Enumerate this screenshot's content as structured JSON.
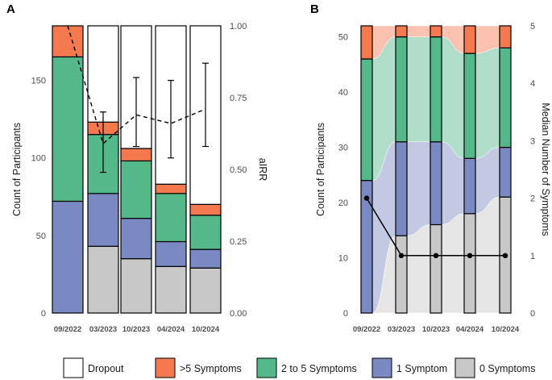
{
  "colors": {
    "Dropout": "#ffffff",
    ">5 Symptoms": "#f4794f",
    "2 to 5 Symptoms": "#55b88b",
    "1 Symptom": "#7b89c2",
    "0 Symptoms": "#c8c8c8"
  },
  "legend": [
    "Dropout",
    ">5 Symptoms",
    "2 to 5 Symptoms",
    "1 Symptom",
    "0 Symptoms"
  ],
  "chart_data": [
    {
      "panel": "A",
      "type": "bar",
      "stacked": true,
      "categories": [
        "09/2022",
        "03/2023",
        "10/2023",
        "04/2024",
        "10/2024"
      ],
      "ylabel": "Count of Participants",
      "ylim": [
        0,
        185
      ],
      "yticks": [
        0,
        50,
        100,
        150
      ],
      "series": [
        {
          "name": "0 Symptoms",
          "values": [
            0,
            43,
            35,
            30,
            29
          ]
        },
        {
          "name": "1 Symptom",
          "values": [
            72,
            34,
            26,
            16,
            12
          ]
        },
        {
          "name": "2 to 5 Symptoms",
          "values": [
            93,
            38,
            37,
            31,
            22
          ]
        },
        {
          "name": ">5 Symptoms",
          "values": [
            20,
            8,
            8,
            6,
            7
          ]
        },
        {
          "name": "Dropout",
          "values": [
            0,
            62,
            79,
            102,
            115
          ]
        }
      ],
      "y2label": "aIRR",
      "y2lim": [
        0,
        1
      ],
      "y2ticks": [
        "0.00",
        "0.25",
        "0.50",
        "0.75",
        "1.00"
      ],
      "airr": {
        "values": [
          1.0,
          0.59,
          0.69,
          0.66,
          0.71
        ],
        "ci_low": [
          null,
          0.49,
          0.58,
          0.54,
          0.58
        ],
        "ci_high": [
          null,
          0.7,
          0.82,
          0.81,
          0.87
        ]
      }
    },
    {
      "panel": "B",
      "type": "bar",
      "stacked": true,
      "categories": [
        "09/2022",
        "03/2023",
        "10/2023",
        "04/2024",
        "10/2024"
      ],
      "ylabel": "Count of Participants",
      "ylim": [
        0,
        52
      ],
      "yticks": [
        0,
        10,
        20,
        30,
        40,
        50
      ],
      "series": [
        {
          "name": "0 Symptoms",
          "values": [
            0,
            14,
            16,
            18,
            21
          ]
        },
        {
          "name": "1 Symptom",
          "values": [
            24,
            17,
            15,
            10,
            9
          ]
        },
        {
          "name": "2 to 5 Symptoms",
          "values": [
            22,
            19,
            19,
            19,
            18
          ]
        },
        {
          "name": ">5 Symptoms",
          "values": [
            6,
            2,
            2,
            5,
            4
          ]
        }
      ],
      "y2label": "Median Number of Symptoms",
      "y2lim": [
        0,
        5
      ],
      "y2ticks": [
        "0",
        "1",
        "2",
        "3",
        "4",
        "5"
      ],
      "median_symptoms": [
        2,
        1,
        1,
        1,
        1
      ]
    }
  ]
}
